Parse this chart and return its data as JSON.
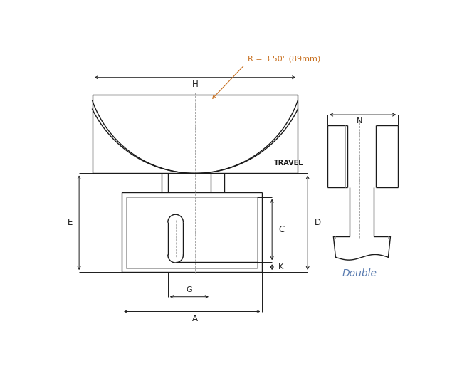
{
  "bg_color": "#ffffff",
  "line_color": "#1a1a1a",
  "dim_color": "#1a1a1a",
  "gray_color": "#aaaaaa",
  "radius_label_color": "#c87020",
  "double_label_color": "#5b7db1",
  "radius_text": "R = 3.50\" (89mm)",
  "travel_text": "TRAVEL",
  "double_text": "Double"
}
